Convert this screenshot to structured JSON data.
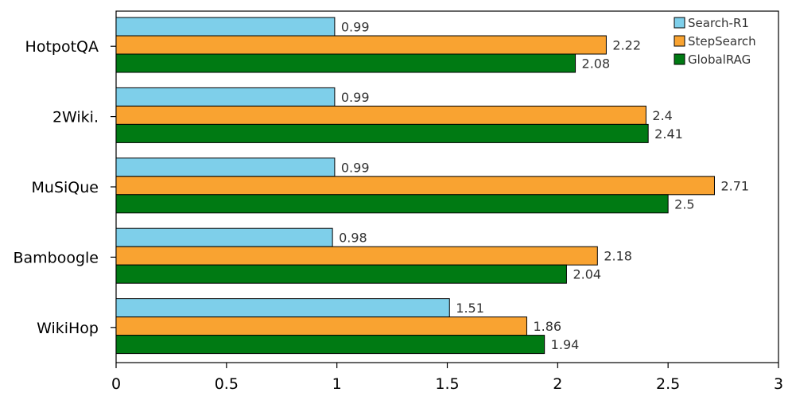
{
  "chart_data": {
    "type": "bar",
    "orientation": "horizontal",
    "title": "",
    "xlabel": "",
    "ylabel": "",
    "xlim": [
      0,
      3
    ],
    "xticks": [
      0,
      0.5,
      1,
      1.5,
      2,
      2.5,
      3
    ],
    "xtick_labels": [
      "0",
      "0.5",
      "1",
      "1.5",
      "2",
      "2.5",
      "3"
    ],
    "categories": [
      "HotpotQA",
      "2Wiki.",
      "MuSiQue",
      "Bamboogle",
      "WikiHop"
    ],
    "series": [
      {
        "name": "Search-R1",
        "color": "#7ECFEA",
        "values": [
          0.99,
          0.99,
          0.99,
          0.98,
          1.51
        ],
        "labels": [
          "0.99",
          "0.99",
          "0.99",
          "0.98",
          "1.51"
        ]
      },
      {
        "name": "StepSearch",
        "color": "#F9A331",
        "values": [
          2.22,
          2.4,
          2.71,
          2.18,
          1.86
        ],
        "labels": [
          "2.22",
          "2.4",
          "2.71",
          "2.18",
          "1.86"
        ]
      },
      {
        "name": "GlobalRAG",
        "color": "#007A13",
        "values": [
          2.08,
          2.41,
          2.5,
          2.04,
          1.94
        ],
        "labels": [
          "2.08",
          "2.41",
          "2.5",
          "2.04",
          "1.94"
        ]
      }
    ],
    "legend_position": "top-right",
    "grid": false
  }
}
